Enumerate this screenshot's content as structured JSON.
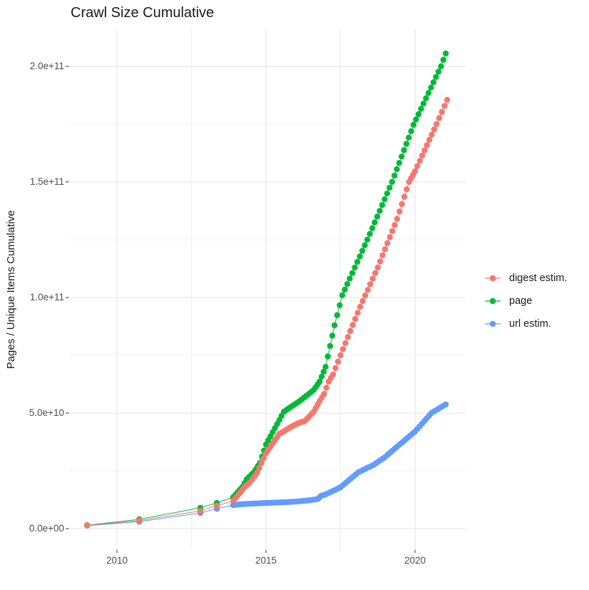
{
  "title": "Crawl Size Cumulative",
  "y_axis": {
    "label": "Pages / Unique Items Cumulative",
    "ticks": [
      "0.0e+00",
      "5.0e+10",
      "1.0e+11",
      "1.5e+11",
      "2.0e+11"
    ]
  },
  "x_axis": {
    "ticks": [
      "2010",
      "2015",
      "2020"
    ]
  },
  "legend": {
    "items": [
      {
        "label": "digest estim.",
        "color": "#F8766D"
      },
      {
        "label": "page",
        "color": "#00BA38"
      },
      {
        "label": "url estim.",
        "color": "#619CFF"
      }
    ]
  },
  "chart_data": {
    "type": "line",
    "title": "Crawl Size Cumulative",
    "xlabel": "",
    "ylabel": "Pages / Unique Items Cumulative",
    "x_ticks": [
      2010,
      2015,
      2020
    ],
    "y_ticks_billions": [
      0,
      50,
      100,
      150,
      200
    ],
    "y_tick_labels": [
      "0.0e+00",
      "5.0e+10",
      "1.0e+11",
      "1.5e+11",
      "2.0e+11"
    ],
    "xlim": [
      2008.4,
      2021.7
    ],
    "ylim_billions": [
      -9,
      216
    ],
    "grid": true,
    "legend_position": "right",
    "point_unit": "[year, cumulative items in billions (1e9)]",
    "series": [
      {
        "name": "digest estim.",
        "color": "#F8766D",
        "points": [
          [
            2009.0,
            1.4
          ],
          [
            2010.75,
            3.5
          ],
          [
            2012.8,
            7.7
          ],
          [
            2013.35,
            9.9
          ],
          [
            2013.9,
            12.0
          ],
          [
            2014.3,
            18.2
          ],
          [
            2014.45,
            19.8
          ],
          [
            2014.7,
            24.1
          ],
          [
            2015.0,
            32.7
          ],
          [
            2015.45,
            41.0
          ],
          [
            2015.7,
            42.9
          ],
          [
            2015.85,
            44.1
          ],
          [
            2016.0,
            45.1
          ],
          [
            2016.15,
            46.0
          ],
          [
            2016.3,
            46.5
          ],
          [
            2016.45,
            48.5
          ],
          [
            2016.6,
            50.6
          ],
          [
            2016.8,
            55.2
          ],
          [
            2016.95,
            58.3
          ],
          [
            2017.1,
            63.6
          ],
          [
            2017.25,
            66.7
          ],
          [
            2017.5,
            75.0
          ],
          [
            2018.16,
            96.0
          ],
          [
            2018.75,
            113.0
          ],
          [
            2019.4,
            134.0
          ],
          [
            2019.8,
            150.0
          ],
          [
            2020.0,
            154.6
          ],
          [
            2020.72,
            175.0
          ],
          [
            2021.08,
            185.5
          ]
        ]
      },
      {
        "name": "page",
        "color": "#00BA38",
        "points": [
          [
            2009.0,
            1.5
          ],
          [
            2010.75,
            4.0
          ],
          [
            2012.8,
            9.0
          ],
          [
            2013.35,
            11.1
          ],
          [
            2013.9,
            13.6
          ],
          [
            2014.2,
            17.9
          ],
          [
            2014.35,
            21.3
          ],
          [
            2014.6,
            24.5
          ],
          [
            2014.8,
            28.5
          ],
          [
            2015.0,
            36.4
          ],
          [
            2015.3,
            43.5
          ],
          [
            2015.6,
            50.6
          ],
          [
            2015.85,
            52.8
          ],
          [
            2016.1,
            54.9
          ],
          [
            2016.35,
            57.4
          ],
          [
            2016.6,
            60.0
          ],
          [
            2016.8,
            63.6
          ],
          [
            2017.0,
            70.0
          ],
          [
            2017.3,
            88.0
          ],
          [
            2017.56,
            101.0
          ],
          [
            2018.4,
            125.0
          ],
          [
            2019.23,
            150.0
          ],
          [
            2019.95,
            174.7
          ],
          [
            2020.87,
            200.0
          ],
          [
            2021.03,
            205.6
          ]
        ]
      },
      {
        "name": "url estim.",
        "color": "#619CFF",
        "points": [
          [
            2009.0,
            1.3
          ],
          [
            2010.75,
            3.0
          ],
          [
            2012.8,
            6.8
          ],
          [
            2013.35,
            8.6
          ],
          [
            2013.9,
            10.2
          ],
          [
            2014.2,
            10.6
          ],
          [
            2015.0,
            11.1
          ],
          [
            2015.6,
            11.4
          ],
          [
            2016.0,
            11.7
          ],
          [
            2016.5,
            12.3
          ],
          [
            2016.75,
            12.9
          ],
          [
            2016.85,
            14.2
          ],
          [
            2017.0,
            14.8
          ],
          [
            2017.5,
            17.9
          ],
          [
            2018.1,
            24.4
          ],
          [
            2018.6,
            27.5
          ],
          [
            2019.0,
            31.0
          ],
          [
            2019.4,
            35.5
          ],
          [
            2020.0,
            42.0
          ],
          [
            2020.55,
            50.0
          ],
          [
            2020.8,
            52.0
          ],
          [
            2021.03,
            53.7
          ]
        ]
      }
    ]
  }
}
